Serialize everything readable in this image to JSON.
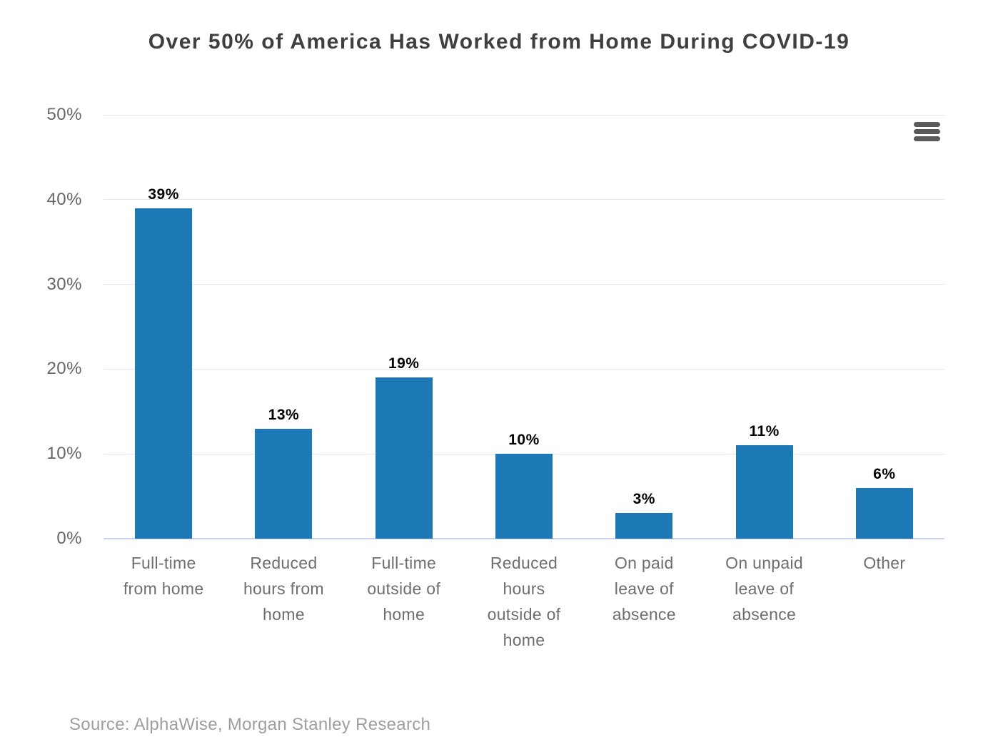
{
  "source": "Source: AlphaWise, Morgan Stanley Research",
  "menu": {
    "icon": "hamburger-menu-icon"
  },
  "colors": {
    "bar": "#1d79b6",
    "gridline": "#e6e6e6",
    "axis_line": "#ccd6eb",
    "title_text": "#3f3f3f",
    "axis_label_text": "#666666",
    "data_label_text": "#000000",
    "source_text": "#9e9e9e",
    "menu_icon": "#5a5a5a",
    "background": "#ffffff"
  },
  "chart_data": {
    "type": "bar",
    "title": "Over 50% of America Has Worked from Home During COVID-19",
    "categories": [
      "Full-time from home",
      "Reduced hours from home",
      "Full-time outside of home",
      "Reduced hours outside of home",
      "On paid leave of absence",
      "On unpaid leave of absence",
      "Other"
    ],
    "category_lines": [
      "Full-time\nfrom home",
      "Reduced\nhours from\nhome",
      "Full-time\noutside of\nhome",
      "Reduced\nhours\noutside of\nhome",
      "On paid\nleave of\nabsence",
      "On unpaid\nleave of\nabsence",
      "Other"
    ],
    "values": [
      39,
      13,
      19,
      10,
      3,
      11,
      6
    ],
    "data_labels": [
      "39%",
      "13%",
      "19%",
      "10%",
      "3%",
      "11%",
      "6%"
    ],
    "xlabel": "",
    "ylabel": "",
    "ylim": [
      0,
      50
    ],
    "yticks": [
      "0%",
      "10%",
      "20%",
      "30%",
      "40%",
      "50%"
    ],
    "grid": true,
    "legend": false
  }
}
